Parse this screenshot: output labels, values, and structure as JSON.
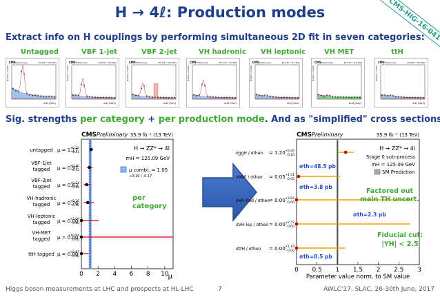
{
  "slide": {
    "title": "H → 4ℓ: Production modes",
    "stamp": "CMS-HIG-16-041",
    "subtitle1": "Extract info on H couplings by performing simultaneous 2D fit in seven categories:",
    "subtitle2_a": "Sig. strengths ",
    "subtitle2_b": "per category",
    "subtitle2_c": " + ",
    "subtitle2_d": "per production mode",
    "subtitle2_e": ". And as \"simplified\" cross sections:",
    "categories": [
      "Untagged",
      "VBF 1-jet",
      "VBF 2-jet",
      "VH hadronic",
      "VH leptonic",
      "VH MET",
      "ttH"
    ],
    "footer_left": "Higgs boson measurements at LHC and prospects at HL-LHC",
    "footer_page": "7",
    "footer_right": "AWLC'17, SLAC, 26-30th June, 2017"
  },
  "thumb_text": {
    "cms": "CMS",
    "prelim": "Preliminary",
    "lumi": "35.9 fb⁻¹ (13 TeV)",
    "xlabel": "m4ℓ (GeV)",
    "ylabel": "Events / 4 GeV"
  },
  "left_plot": {
    "cms": "CMS",
    "prelim": "Preliminary",
    "lumi": "35.9 fb⁻¹ (13 TeV)",
    "process": "H → ZZ* → 4l",
    "mass": "mH = 125.09 GeV",
    "combined_label": "μ combi. = 1.05",
    "combined_err": "+0.19 / -0.17",
    "annotation": [
      "per",
      "category"
    ],
    "xlabel": "μ",
    "chart_data": {
      "type": "scatter",
      "xlim": [
        0,
        11
      ],
      "xticks": [
        "0",
        "2",
        "4",
        "6",
        "8",
        "10"
      ],
      "combined": {
        "value": 1.05,
        "up": 0.19,
        "down": 0.17
      },
      "rows": [
        {
          "label": [
            "untagged"
          ],
          "text": "μ = 1.17",
          "err": "+0.23 / -0.21",
          "value": 1.17,
          "up": 0.23,
          "down": 0.21
        },
        {
          "label": [
            "VBF-1jet",
            "tagged"
          ],
          "text": "μ = 0.97",
          "err": "+0.40 / -0.32",
          "value": 0.97,
          "up": 0.4,
          "down": 0.32
        },
        {
          "label": [
            "VBF-2jet",
            "tagged"
          ],
          "text": "μ = 0.63",
          "err": "+0.51 / -0.34",
          "value": 0.63,
          "up": 0.51,
          "down": 0.34
        },
        {
          "label": [
            "VH-hadronic",
            "tagged"
          ],
          "text": "μ = 0.76",
          "err": "+0.76 / -0.48",
          "value": 0.76,
          "up": 0.76,
          "down": 0.48
        },
        {
          "label": [
            "VH-leptonic",
            "tagged"
          ],
          "text": "μ = 0.00",
          "err": "+2.09 / -0.00",
          "value": 0.0,
          "up": 2.09,
          "down": 0.0
        },
        {
          "label": [
            "VH-MET",
            "tagged"
          ],
          "text": "μ = 0.00",
          "err": "+10.94 / -0.00",
          "value": 0.0,
          "up": 10.94,
          "down": 0.0
        },
        {
          "label": [
            "ttH tagged"
          ],
          "text": "μ = 0.00",
          "err": "+0.87 / -0.00",
          "value": 0.0,
          "up": 0.87,
          "down": 0.0
        }
      ]
    }
  },
  "right_plot": {
    "cms": "CMS",
    "prelim": "Preliminary",
    "lumi": "35.9 fb⁻¹ (13 TeV)",
    "process": "H → ZZ* → 4l",
    "stage": "Stage 0 sub-process",
    "mass": "mH = 125.09 GeV",
    "legend": "SM Prediction",
    "xlabel": "Parameter value norm. to SM value",
    "annot_factored": [
      "Factored out",
      "main TH uncert."
    ],
    "annot_fiducial": [
      "Fiducial cut:",
      "|YH| < 2.5"
    ],
    "colors": {
      "blue_text": "#1f4fd1",
      "green_text": "#3fa934",
      "orange": "#f4a000",
      "red": "#c00000"
    },
    "chart_data": {
      "type": "scatter",
      "xlim": [
        0,
        3
      ],
      "xticks": [
        "0",
        "0.5",
        "1",
        "1.5",
        "2",
        "2.5",
        "3"
      ],
      "rows": [
        {
          "label": "σggH / σtheo",
          "text": "= 1.20",
          "err": "+0.20 / -0.20",
          "value": 1.2,
          "up": 0.2,
          "down": 0.2,
          "sigma": "σth=48.5 pb"
        },
        {
          "label": "σVBF / σtheo",
          "text": "= 0.05",
          "err": "+1.01 / -0.05",
          "value": 0.05,
          "up": 1.01,
          "down": 0.05,
          "sigma": "σth=3.8 pb"
        },
        {
          "label": "σVH-had / σtheo",
          "text": "= 0.00",
          "err": "+2.83 / -0.00",
          "value": 0.0,
          "up": 2.83,
          "down": 0.0,
          "sigma": ""
        },
        {
          "label": "σVH-lep / σtheo",
          "text": "= 0.00",
          "err": "+2.77 / -0.00",
          "value": 0.0,
          "up": 2.77,
          "down": 0.0,
          "sigma": "σth=2.3 pb"
        },
        {
          "label": "σttH / σtheo",
          "text": "= 0.00",
          "err": "+1.19 / -0.00",
          "value": 0.0,
          "up": 1.19,
          "down": 0.0,
          "sigma": "σth=0.5 pb"
        }
      ]
    }
  }
}
